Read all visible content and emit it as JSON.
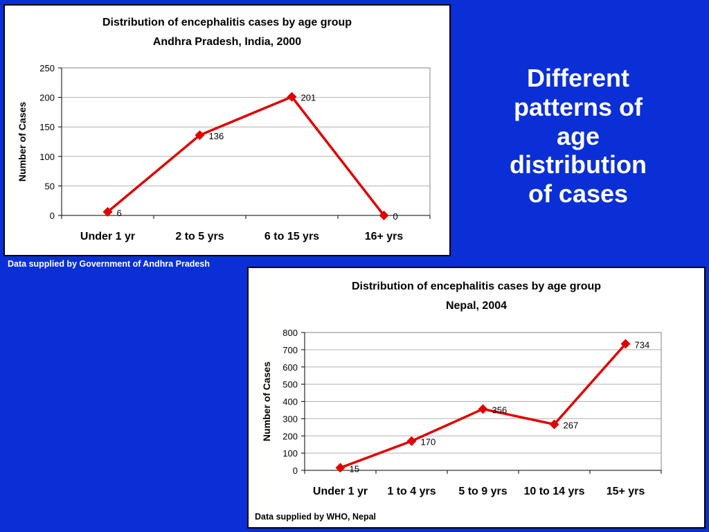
{
  "heading": "Different\npatterns of\nage\ndistribution\nof cases",
  "charts": [
    {
      "credit": "Data supplied by Government of Andhra Pradesh"
    },
    {
      "credit": "Data supplied by WHO, Nepal"
    }
  ],
  "colors": {
    "background": "#0a2fd6",
    "series": "#e00000"
  },
  "chart_data": [
    {
      "type": "line",
      "title": "Distribution of encephalitis cases by age group",
      "subtitle": "Andhra Pradesh, India, 2000",
      "ylabel": "Number of Cases",
      "xlabel": "",
      "ylim": [
        0,
        250
      ],
      "yticks": [
        "0",
        "50",
        "100",
        "150",
        "200",
        "250"
      ],
      "categories": [
        "Under 1 yr",
        "2 to 5 yrs",
        "6 to 15 yrs",
        "16+  yrs"
      ],
      "values": [
        6,
        136,
        201,
        0
      ],
      "data_labels": [
        "6",
        "136",
        "201",
        "0"
      ],
      "grid": true
    },
    {
      "type": "line",
      "title": "Distribution of encephalitis cases by age group",
      "subtitle": "Nepal, 2004",
      "ylabel": "Number of Cases",
      "xlabel": "",
      "ylim": [
        0,
        800
      ],
      "yticks": [
        "0",
        "100",
        "200",
        "300",
        "400",
        "500",
        "600",
        "700",
        "800"
      ],
      "categories": [
        "Under 1 yr",
        "1 to 4 yrs",
        "5 to 9 yrs",
        "10 to 14 yrs",
        "15+ yrs"
      ],
      "values": [
        15,
        170,
        356,
        267,
        734
      ],
      "data_labels": [
        "15",
        "170",
        "356",
        "267",
        "734"
      ],
      "grid": true
    }
  ]
}
